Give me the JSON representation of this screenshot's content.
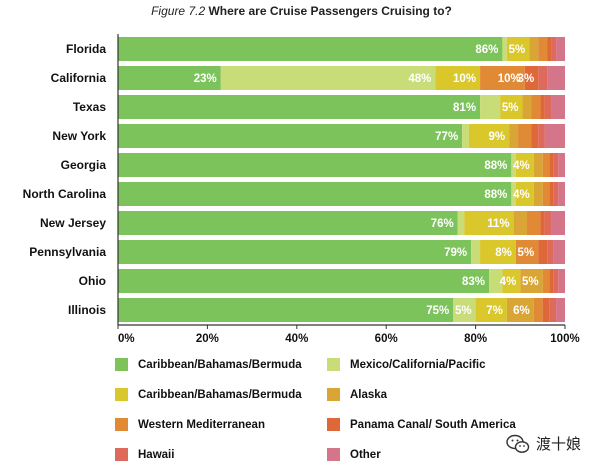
{
  "title": {
    "figure": "Figure 7.2",
    "main": "Where are Cruise Passengers Cruising to?"
  },
  "watermark": {
    "text": "渡十娘"
  },
  "chart_data": {
    "type": "bar",
    "orientation": "horizontal",
    "stacked": true,
    "xlim": [
      0,
      100
    ],
    "x_ticks": [
      "0%",
      "20%",
      "40%",
      "60%",
      "80%",
      "100%"
    ],
    "grid": false,
    "legend_position": "bottom",
    "categories": [
      "Florida",
      "California",
      "Texas",
      "New York",
      "Georgia",
      "North Carolina",
      "New Jersey",
      "Pennsylvania",
      "Ohio",
      "Illinois"
    ],
    "series": [
      {
        "name": "Caribbean/Bahamas/Bermuda",
        "color": "#7DC35C",
        "values": [
          86,
          23,
          81,
          77,
          88,
          88,
          76,
          79,
          83,
          75
        ],
        "labels": [
          "86%",
          "23%",
          "81%",
          "77%",
          "88%",
          "88%",
          "76%",
          "79%",
          "83%",
          "75%"
        ]
      },
      {
        "name": "Mexico/California/Pacific",
        "color": "#C8DC78",
        "values": [
          1,
          48,
          4.5,
          1.5,
          1,
          1,
          1.5,
          2,
          3,
          5
        ],
        "labels": [
          "",
          "48%",
          "",
          "",
          "",
          "",
          "",
          "",
          "",
          "5%"
        ]
      },
      {
        "name": "Caribbean/Bahamas/Bermuda",
        "color": "#D9C72C",
        "values": [
          5,
          10,
          5,
          9,
          4,
          4,
          11,
          8,
          4,
          7
        ],
        "labels": [
          "5%",
          "10%",
          "5%",
          "9%",
          "4%",
          "4%",
          "11%",
          "8%",
          "4%",
          "7%"
        ]
      },
      {
        "name": "Alaska",
        "color": "#D9A636",
        "values": [
          2,
          0,
          2,
          2,
          2,
          2,
          3,
          0,
          5,
          6
        ],
        "labels": [
          "",
          "",
          "",
          "",
          "",
          "",
          "",
          "",
          "5%",
          "6%"
        ]
      },
      {
        "name": "Western Mediterranean",
        "color": "#E08A35",
        "values": [
          2,
          10,
          2,
          3,
          1.5,
          1.5,
          3,
          5,
          1.5,
          2
        ],
        "labels": [
          "",
          "10%",
          "",
          "",
          "",
          "",
          "",
          "5%",
          "",
          ""
        ]
      },
      {
        "name": "Panama Canal/ South America",
        "color": "#DF6838",
        "values": [
          1,
          3,
          1,
          1.5,
          1,
          1,
          1,
          2,
          1,
          1.5
        ],
        "labels": [
          "",
          "3%",
          "",
          "",
          "",
          "",
          "",
          "",
          "",
          ""
        ]
      },
      {
        "name": "Hawaii",
        "color": "#DE6A5C",
        "values": [
          1,
          2,
          1.5,
          1.5,
          1,
          1,
          1.5,
          1.5,
          1,
          1.5
        ],
        "labels": [
          "",
          "",
          "",
          "",
          "",
          "",
          "",
          "",
          "",
          ""
        ]
      },
      {
        "name": "Other",
        "color": "#D57589",
        "values": [
          2,
          4,
          3,
          4.5,
          1.5,
          1.5,
          3,
          2.5,
          1.5,
          2
        ],
        "labels": [
          "",
          "",
          "",
          "",
          "",
          "",
          "",
          "",
          "",
          ""
        ]
      }
    ]
  }
}
